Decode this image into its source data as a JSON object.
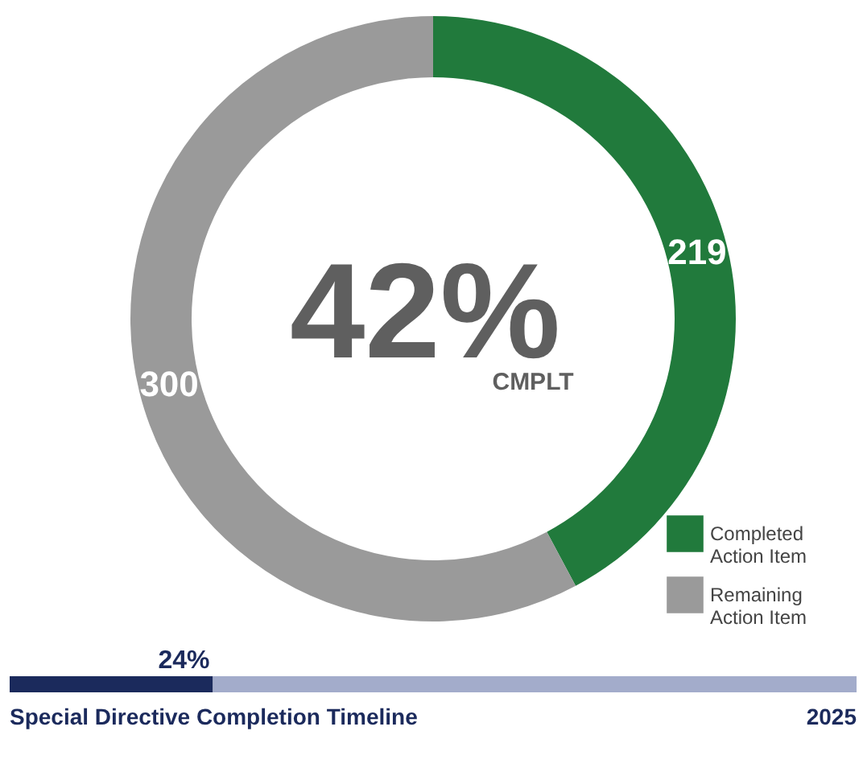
{
  "chart_data": [
    {
      "type": "donut",
      "categories": [
        "Completed Action Item",
        "Remaining Action Item"
      ],
      "values": [
        219,
        300
      ],
      "colors": [
        "#217a3c",
        "#9a9a9a"
      ],
      "data_labels": true,
      "legend": "bottom right",
      "annotations": [
        "42%",
        "CMPLT"
      ]
    },
    {
      "type": "bar",
      "orientation": "horizontal",
      "stacked": true,
      "categories": [
        null
      ],
      "xlim": [
        0,
        100
      ],
      "tick_labels": false,
      "series": [
        {
          "color": "#1b2a5c",
          "values": [
            24
          ],
          "value_labels": [
            "24%"
          ]
        },
        {
          "color": "#a3accb",
          "values": [
            76
          ]
        }
      ],
      "annotations": [
        "Special Directive Completion Timeline",
        "2025"
      ]
    }
  ]
}
